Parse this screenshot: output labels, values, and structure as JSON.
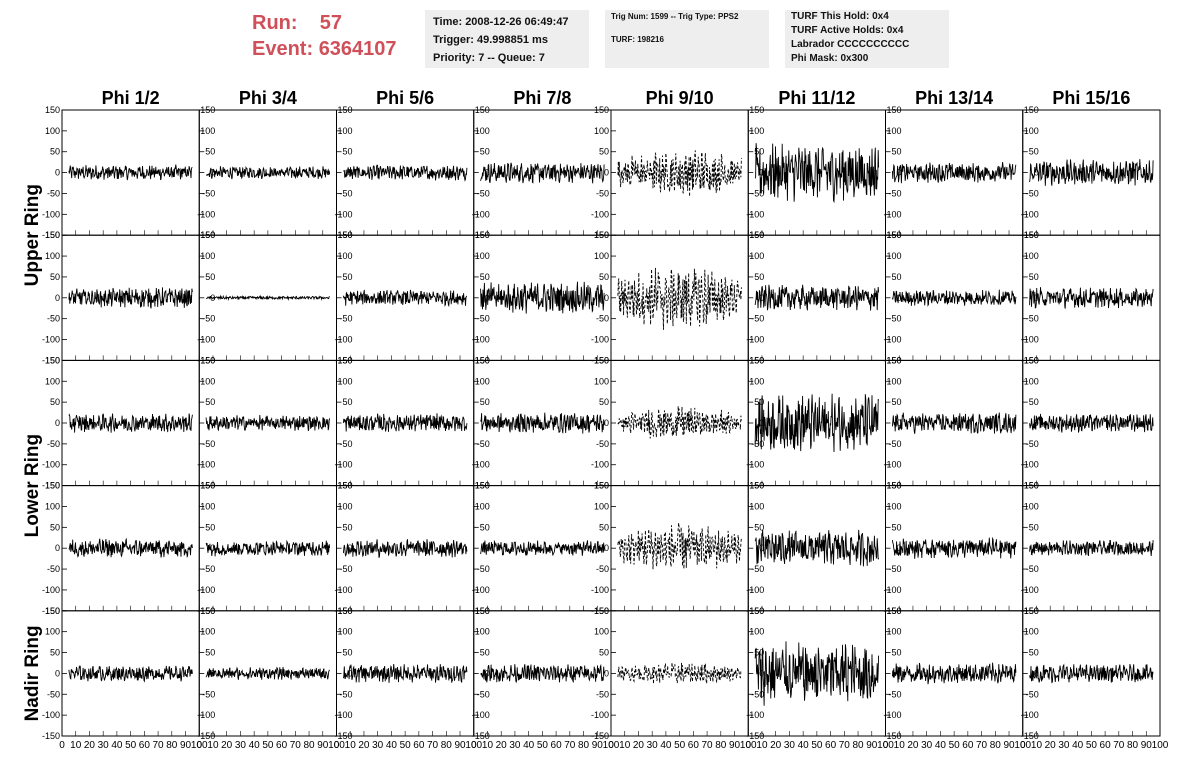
{
  "header": {
    "run_label": "Run:",
    "run_value": "57",
    "event_label": "Event:",
    "event_value": "6364107",
    "time": "Time: 2008-12-26 06:49:47",
    "trigger": "Trigger: 49.998851 ms",
    "priority": "Priority: 7 -- Queue: 7",
    "trig_num": "Trig Num: 1599 -- Trig Type: PPS2",
    "turf": "TURF: 198216",
    "turf_this_hold": "TURF This Hold: 0x4",
    "turf_active_holds": "TURF Active Holds: 0x4",
    "labrador": "Labrador CCCCCCCCCC",
    "phi_mask": "Phi Mask: 0x300"
  },
  "columns": [
    "Phi 1/2",
    "Phi 3/4",
    "Phi 5/6",
    "Phi 7/8",
    "Phi 9/10",
    "Phi 11/12",
    "Phi 13/14",
    "Phi 15/16"
  ],
  "ring_labels": [
    "Upper Ring",
    "Lower Ring",
    "Nadir Ring"
  ],
  "y_ticks": [
    "150",
    "100",
    "50",
    "0",
    "-50",
    "-100",
    "-150"
  ],
  "x_ticks": [
    "0",
    "10",
    "20",
    "30",
    "40",
    "50",
    "60",
    "70",
    "80",
    "90",
    "100"
  ],
  "chart_data": {
    "type": "line",
    "xlim": [
      0,
      100
    ],
    "ylim": [
      -150,
      150
    ],
    "grid": false,
    "rows": 5,
    "cols": 8,
    "amplitudes": [
      [
        15,
        12,
        15,
        20,
        45,
        55,
        20,
        25
      ],
      [
        20,
        3,
        15,
        30,
        60,
        25,
        15,
        20
      ],
      [
        18,
        15,
        18,
        20,
        30,
        55,
        20,
        18
      ],
      [
        18,
        15,
        18,
        15,
        45,
        35,
        20,
        15
      ],
      [
        15,
        12,
        18,
        18,
        20,
        60,
        20,
        18
      ]
    ],
    "dashed_column": 4
  }
}
